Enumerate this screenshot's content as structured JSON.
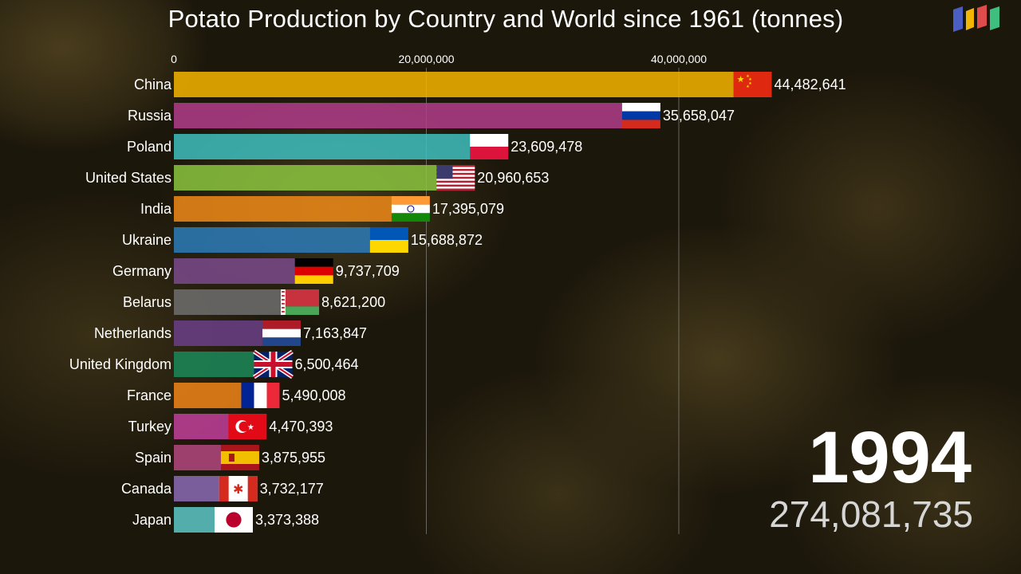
{
  "title": "Potato Production by Country and World since 1961 (tonnes)",
  "year": "1994",
  "total": "274,081,735",
  "chart_data": {
    "type": "bar",
    "orientation": "horizontal",
    "title": "Potato Production by Country and World since 1961 (tonnes)",
    "x_ticks": [
      0,
      20000000,
      40000000
    ],
    "x_tick_labels": [
      "0",
      "20,000,000",
      "40,000,000"
    ],
    "xlim": [
      0,
      50000000
    ],
    "grid": true,
    "bars": [
      {
        "country": "China",
        "value": 44482641,
        "label": "44,482,641",
        "color": "#f7b500",
        "flag": "china-flag-icon"
      },
      {
        "country": "Russia",
        "value": 35658047,
        "label": "35,658,047",
        "color": "#b23d8a",
        "flag": "russia-flag-icon"
      },
      {
        "country": "Poland",
        "value": 23609478,
        "label": "23,609,478",
        "color": "#3fbfbf",
        "flag": "poland-flag-icon"
      },
      {
        "country": "United States",
        "value": 20960653,
        "label": "20,960,653",
        "color": "#8cc63f",
        "flag": "usa-flag-icon"
      },
      {
        "country": "India",
        "value": 17395079,
        "label": "17,395,079",
        "color": "#ef8a17",
        "flag": "india-flag-icon"
      },
      {
        "country": "Ukraine",
        "value": 15688872,
        "label": "15,688,872",
        "color": "#2b7bb9",
        "flag": "ukraine-flag-icon"
      },
      {
        "country": "Germany",
        "value": 9737709,
        "label": "9,737,709",
        "color": "#7a4a8c",
        "flag": "germany-flag-icon"
      },
      {
        "country": "Belarus",
        "value": 8621200,
        "label": "8,621,200",
        "color": "#6e6e6e",
        "flag": "belarus-flag-icon"
      },
      {
        "country": "Netherlands",
        "value": 7163847,
        "label": "7,163,847",
        "color": "#6b3f87",
        "flag": "netherlands-flag-icon"
      },
      {
        "country": "United Kingdom",
        "value": 6500464,
        "label": "6,500,464",
        "color": "#1b8a5a",
        "flag": "uk-flag-icon"
      },
      {
        "country": "France",
        "value": 5490008,
        "label": "5,490,008",
        "color": "#f08519",
        "flag": "france-flag-icon"
      },
      {
        "country": "Turkey",
        "value": 4470393,
        "label": "4,470,393",
        "color": "#c2409a",
        "flag": "turkey-flag-icon"
      },
      {
        "country": "Spain",
        "value": 3875955,
        "label": "3,875,955",
        "color": "#b5487f",
        "flag": "spain-flag-icon"
      },
      {
        "country": "Canada",
        "value": 3732177,
        "label": "3,732,177",
        "color": "#8b6bb5",
        "flag": "canada-flag-icon"
      },
      {
        "country": "Japan",
        "value": 3373388,
        "label": "3,373,388",
        "color": "#5cc8c8",
        "flag": "japan-flag-icon"
      }
    ]
  }
}
